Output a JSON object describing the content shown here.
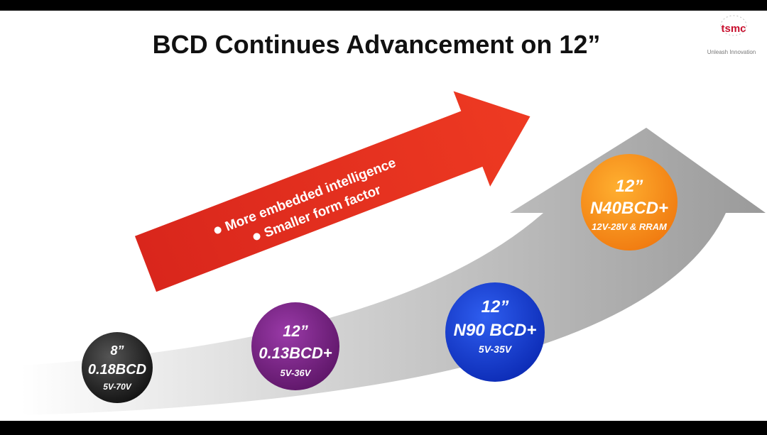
{
  "header": {
    "title": "BCD Continues Advancement on 12”",
    "logo": "tsmc",
    "tagline": "Unleash Innovation"
  },
  "arrow": {
    "bullets": [
      "More embedded intelligence",
      "Smaller form factor"
    ]
  },
  "nodes": [
    {
      "wafer": "8”",
      "label": "0.18BCD",
      "voltage": "5V-70V"
    },
    {
      "wafer": "12”",
      "label": "0.13BCD+",
      "voltage": "5V-36V"
    },
    {
      "wafer": "12”",
      "label": "N90 BCD+",
      "voltage": "5V-35V"
    },
    {
      "wafer": "12”",
      "label": "N40BCD+",
      "voltage": "12V-28V & RRAM"
    }
  ]
}
